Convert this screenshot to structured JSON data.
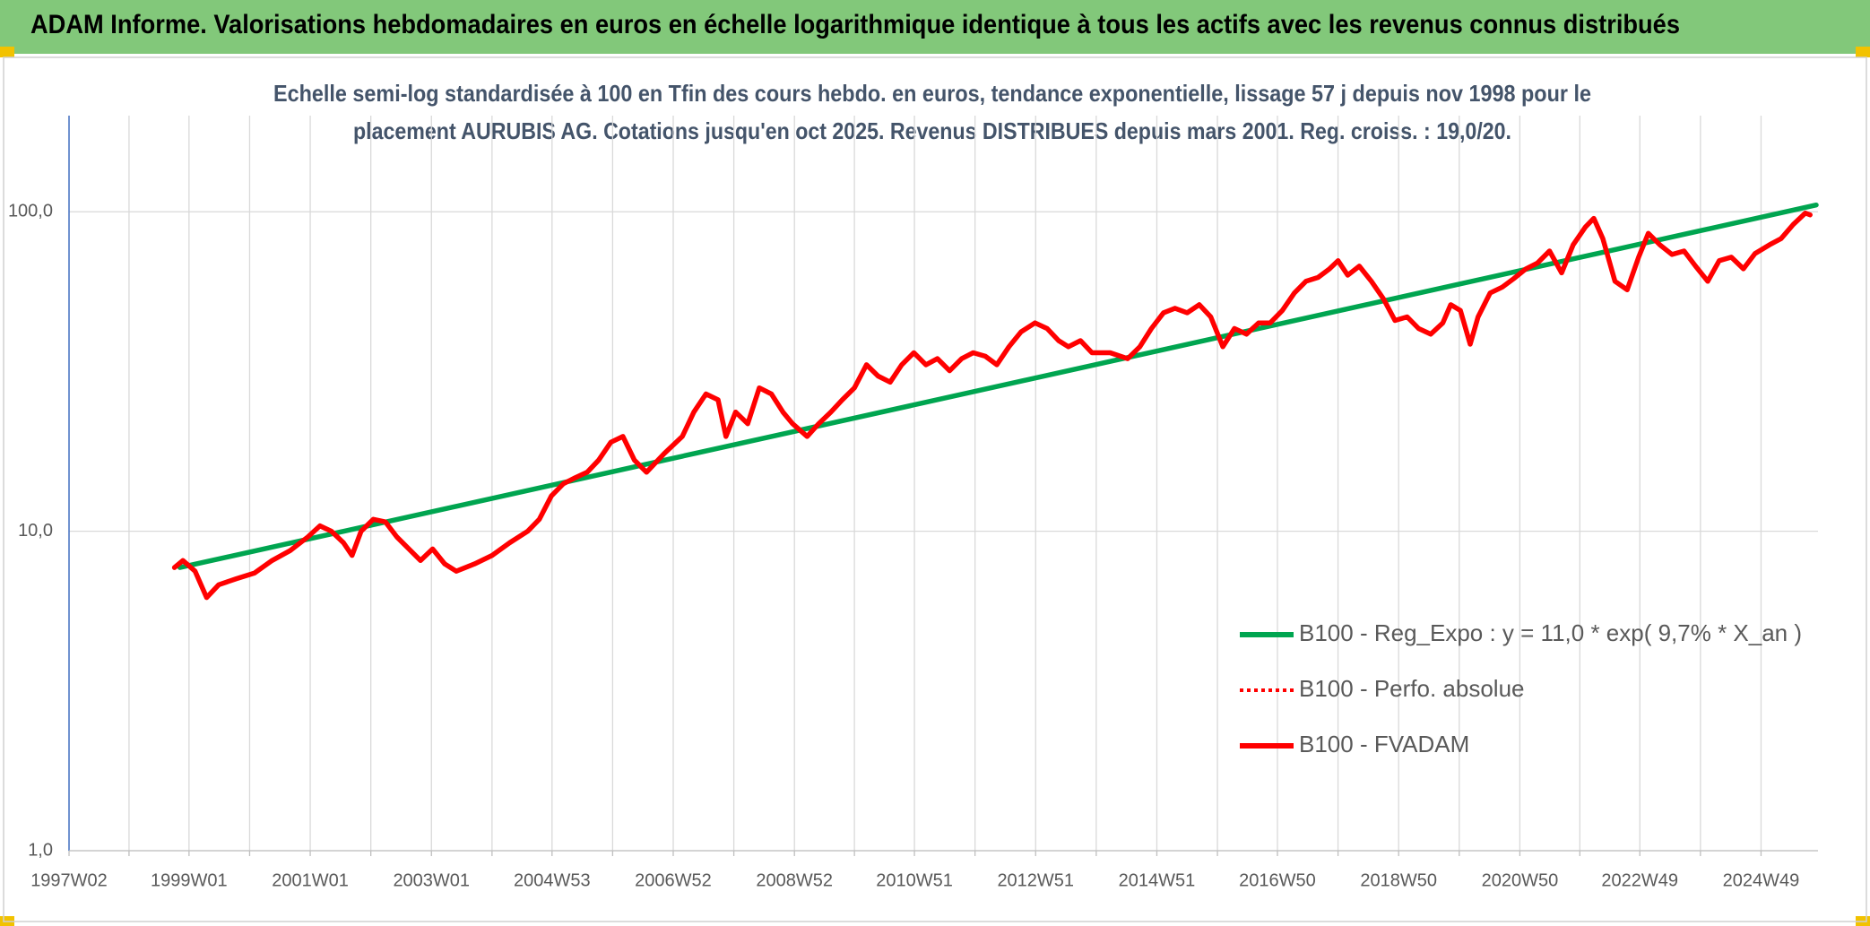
{
  "chart_data": {
    "type": "line",
    "title": "ADAM Informe. Valorisations hebdomadaires en euros en échelle logarithmique identique à tous les actifs avec les revenus connus distribués",
    "subtitle": [
      "Echelle semi-log standardisée à 100 en Tfin des cours hebdo. en euros, tendance exponentielle, lissage 57 j depuis nov 1998 pour le",
      "placement AURUBIS AG. Cotations jusqu'en oct 2025. Revenus DISTRIBUES depuis mars 2001. Reg. croiss. : 19,0/20."
    ],
    "log_y": true,
    "grid": true,
    "legend": "right",
    "xlim": [
      1997.02,
      2025.88
    ],
    "xticks": [
      {
        "value": 1997.02,
        "label": "1997W02"
      },
      {
        "value": 1998.01,
        "label": null
      },
      {
        "value": 1999.0,
        "label": "1999W01"
      },
      {
        "value": 2000.0,
        "label": null
      },
      {
        "value": 2001.0,
        "label": "2001W01"
      },
      {
        "value": 2002.0,
        "label": null
      },
      {
        "value": 2003.0,
        "label": "2003W01"
      },
      {
        "value": 2004.0,
        "label": null
      },
      {
        "value": 2004.99,
        "label": "2004W53"
      },
      {
        "value": 2005.99,
        "label": null
      },
      {
        "value": 2006.99,
        "label": "2006W52"
      },
      {
        "value": 2007.99,
        "label": null
      },
      {
        "value": 2008.99,
        "label": "2008W52"
      },
      {
        "value": 2009.98,
        "label": null
      },
      {
        "value": 2010.97,
        "label": "2010W51"
      },
      {
        "value": 2011.97,
        "label": null
      },
      {
        "value": 2012.97,
        "label": "2012W51"
      },
      {
        "value": 2013.97,
        "label": null
      },
      {
        "value": 2014.97,
        "label": "2014W51"
      },
      {
        "value": 2015.97,
        "label": null
      },
      {
        "value": 2016.96,
        "label": "2016W50"
      },
      {
        "value": 2017.96,
        "label": null
      },
      {
        "value": 2018.96,
        "label": "2018W50"
      },
      {
        "value": 2019.96,
        "label": null
      },
      {
        "value": 2020.96,
        "label": "2020W50"
      },
      {
        "value": 2021.95,
        "label": null
      },
      {
        "value": 2022.94,
        "label": "2022W49"
      },
      {
        "value": 2023.94,
        "label": null
      },
      {
        "value": 2024.94,
        "label": "2024W49"
      }
    ],
    "ylim": [
      1,
      200
    ],
    "yticks": [
      {
        "value": 1,
        "label": "1,0"
      },
      {
        "value": 10,
        "label": "10,0"
      },
      {
        "value": 100,
        "label": "100,0"
      }
    ],
    "series": [
      {
        "name": "B100 - Reg_Expo : y = 11,0 * exp( 9,7% *  X_an )",
        "color": "#00a550",
        "dash": "solid",
        "x": [
          1998.85,
          2025.85
        ],
        "values": [
          7.7,
          105
        ]
      },
      {
        "name": "B100 - Perfo. absolue",
        "color": "#ff0000",
        "dash": "dotted",
        "x": [],
        "values": []
      },
      {
        "name": "B100 - FVADAM",
        "color": "#ff0000",
        "dash": "solid",
        "x": [
          1998.76,
          1998.9,
          1999.1,
          1999.29,
          1999.49,
          1999.78,
          2000.08,
          2000.37,
          2000.67,
          2000.96,
          2001.16,
          2001.35,
          2001.55,
          2001.69,
          2001.84,
          2002.04,
          2002.24,
          2002.43,
          2002.63,
          2002.82,
          2003.02,
          2003.22,
          2003.41,
          2003.71,
          2004.0,
          2004.29,
          2004.59,
          2004.78,
          2004.98,
          2005.18,
          2005.37,
          2005.57,
          2005.76,
          2005.96,
          2006.16,
          2006.35,
          2006.55,
          2006.84,
          2007.14,
          2007.33,
          2007.53,
          2007.73,
          2007.86,
          2008.02,
          2008.22,
          2008.41,
          2008.61,
          2008.8,
          2008.96,
          2009.2,
          2009.39,
          2009.59,
          2009.78,
          2009.98,
          2010.18,
          2010.37,
          2010.57,
          2010.76,
          2010.96,
          2011.16,
          2011.35,
          2011.55,
          2011.75,
          2011.94,
          2012.14,
          2012.33,
          2012.53,
          2012.73,
          2012.96,
          2013.16,
          2013.35,
          2013.51,
          2013.71,
          2013.9,
          2014.2,
          2014.49,
          2014.69,
          2014.88,
          2015.08,
          2015.27,
          2015.47,
          2015.67,
          2015.86,
          2016.06,
          2016.25,
          2016.45,
          2016.65,
          2016.84,
          2017.04,
          2017.24,
          2017.43,
          2017.63,
          2017.82,
          2017.96,
          2018.12,
          2018.31,
          2018.51,
          2018.71,
          2018.9,
          2019.1,
          2019.29,
          2019.49,
          2019.69,
          2019.82,
          2019.98,
          2020.14,
          2020.27,
          2020.47,
          2020.67,
          2020.86,
          2021.06,
          2021.25,
          2021.45,
          2021.65,
          2021.84,
          2022.04,
          2022.18,
          2022.33,
          2022.53,
          2022.73,
          2022.92,
          2023.08,
          2023.27,
          2023.47,
          2023.67,
          2023.86,
          2024.06,
          2024.25,
          2024.45,
          2024.65,
          2024.84,
          2025.08,
          2025.27,
          2025.47,
          2025.67,
          2025.75
        ],
        "values": [
          7.7,
          8.1,
          7.5,
          6.2,
          6.8,
          7.1,
          7.4,
          8.1,
          8.7,
          9.6,
          10.4,
          10.0,
          9.2,
          8.4,
          10.0,
          10.9,
          10.7,
          9.6,
          8.8,
          8.1,
          8.8,
          7.9,
          7.5,
          7.9,
          8.4,
          9.2,
          10.0,
          10.9,
          12.9,
          14.1,
          14.7,
          15.3,
          16.7,
          19.0,
          19.8,
          16.7,
          15.3,
          17.5,
          19.8,
          23.6,
          26.9,
          25.8,
          19.8,
          23.6,
          21.7,
          28.1,
          26.9,
          23.6,
          21.7,
          19.8,
          21.7,
          23.6,
          25.8,
          28.1,
          33.2,
          30.6,
          29.3,
          33.2,
          36.2,
          33.2,
          34.7,
          31.8,
          34.7,
          36.2,
          35.3,
          33.2,
          37.8,
          42.1,
          44.9,
          43.1,
          39.5,
          37.8,
          39.5,
          36.2,
          36.2,
          34.7,
          37.8,
          43.1,
          48.3,
          49.9,
          48.3,
          51.2,
          46.9,
          37.8,
          43.1,
          41.4,
          44.9,
          44.9,
          49.1,
          55.7,
          60.6,
          62.3,
          66.3,
          70.3,
          63.3,
          67.6,
          60.6,
          53.4,
          45.7,
          46.9,
          43.1,
          41.4,
          44.9,
          51.2,
          49.1,
          38.5,
          46.9,
          55.7,
          58.1,
          61.8,
          66.3,
          69.1,
          75.4,
          64.4,
          78.8,
          89.5,
          95.4,
          82.4,
          60.6,
          57.0,
          72.1,
          85.6,
          78.8,
          73.5,
          75.4,
          67.6,
          60.6,
          70.3,
          72.1,
          66.3,
          74.0,
          78.8,
          82.4,
          91.2,
          99.1,
          97.8
        ]
      }
    ]
  }
}
